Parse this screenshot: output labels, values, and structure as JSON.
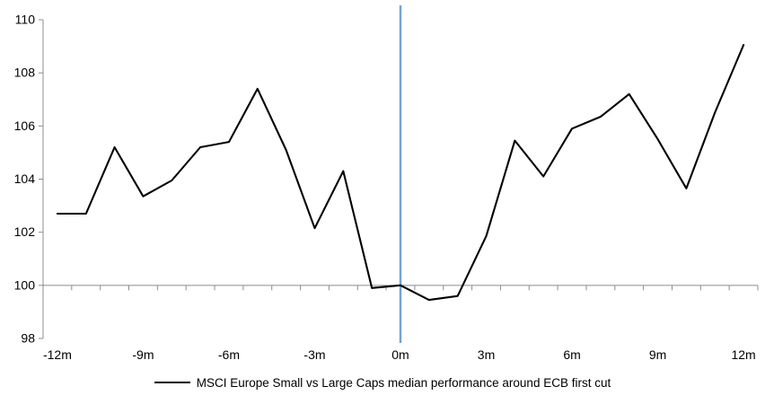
{
  "chart_data": {
    "type": "line",
    "title": "",
    "xlabel": "",
    "ylabel": "",
    "x": [
      -12,
      -11,
      -10,
      -9,
      -8,
      -7,
      -6,
      -5,
      -4,
      -3,
      -2,
      -1,
      0,
      1,
      2,
      3,
      4,
      5,
      6,
      7,
      8,
      9,
      10,
      11,
      12
    ],
    "series": [
      {
        "name": "MSCI Europe Small vs Large Caps median performance around ECB first cut",
        "values": [
          102.7,
          102.7,
          105.2,
          103.35,
          103.95,
          105.2,
          105.4,
          107.4,
          105.1,
          102.15,
          104.3,
          99.9,
          100.0,
          99.45,
          99.6,
          101.85,
          105.45,
          104.1,
          105.9,
          106.35,
          107.2,
          105.5,
          103.65,
          106.5,
          109.05
        ]
      }
    ],
    "ylim": [
      98,
      110
    ],
    "yticks": [
      98,
      100,
      102,
      104,
      106,
      108,
      110
    ],
    "xticks": [
      {
        "month": -12,
        "label": "-12m"
      },
      {
        "month": -9,
        "label": "-9m"
      },
      {
        "month": -6,
        "label": "-6m"
      },
      {
        "month": -3,
        "label": "-3m"
      },
      {
        "month": 0,
        "label": "0m"
      },
      {
        "month": 3,
        "label": "3m"
      },
      {
        "month": 6,
        "label": "6m"
      },
      {
        "month": 9,
        "label": "9m"
      },
      {
        "month": 12,
        "label": "12m"
      }
    ],
    "event_line_month": 0,
    "baseline_value": 100,
    "grid": false,
    "legend_position": "bottom",
    "colors": {
      "series_line": "#000000",
      "event_line": "#74A3D2",
      "axis_line": "#8C8C8C",
      "tick_text": "#000000"
    }
  }
}
